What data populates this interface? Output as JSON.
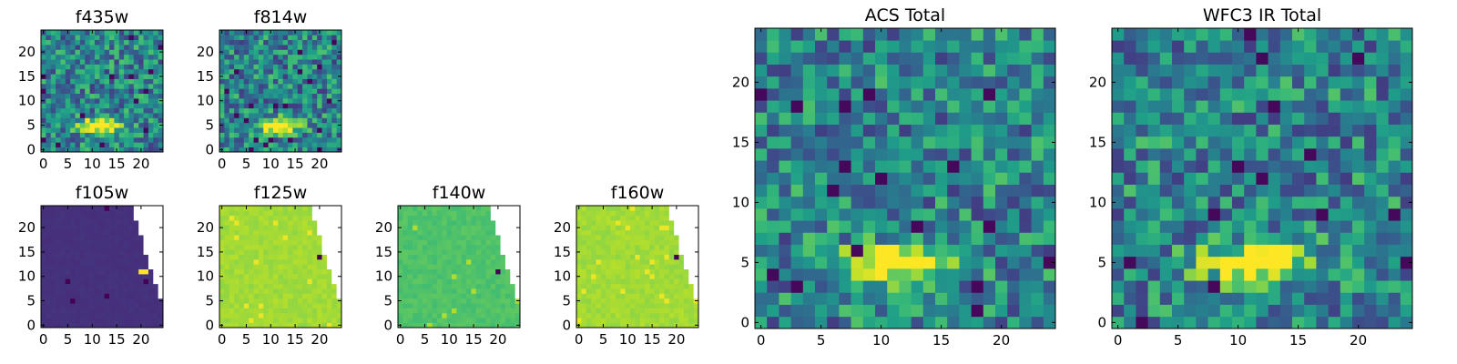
{
  "chart_data": [
    {
      "type": "heatmap",
      "title": "f435w",
      "pattern": "noisy-with-bright-band",
      "xticks": [
        "0",
        "5",
        "10",
        "15",
        "20"
      ],
      "yticks": [
        "0",
        "5",
        "10",
        "15",
        "20"
      ],
      "shape": [
        25,
        25
      ],
      "xlim": [
        -0.5,
        24.5
      ],
      "ylim": [
        -0.5,
        24.5
      ]
    },
    {
      "type": "heatmap",
      "title": "f814w",
      "pattern": "noisy-with-bright-band",
      "xticks": [
        "0",
        "5",
        "10",
        "15",
        "20"
      ],
      "yticks": [
        "0",
        "5",
        "10",
        "15",
        "20"
      ],
      "shape": [
        25,
        25
      ],
      "xlim": [
        -0.5,
        24.5
      ],
      "ylim": [
        -0.5,
        24.5
      ]
    },
    {
      "type": "heatmap",
      "title": "f105w",
      "pattern": "near-uniform-dark-with-masked-corner",
      "xticks": [
        "0",
        "5",
        "10",
        "15",
        "20"
      ],
      "yticks": [
        "0",
        "5",
        "10",
        "15",
        "20"
      ],
      "shape": [
        25,
        25
      ],
      "xlim": [
        -0.5,
        24.5
      ],
      "ylim": [
        -0.5,
        24.5
      ]
    },
    {
      "type": "heatmap",
      "title": "f125w",
      "pattern": "near-uniform-bright-with-masked-corner",
      "xticks": [
        "0",
        "5",
        "10",
        "15",
        "20"
      ],
      "yticks": [
        "0",
        "5",
        "10",
        "15",
        "20"
      ],
      "shape": [
        25,
        25
      ],
      "xlim": [
        -0.5,
        24.5
      ],
      "ylim": [
        -0.5,
        24.5
      ]
    },
    {
      "type": "heatmap",
      "title": "f140w",
      "pattern": "near-uniform-green-with-masked-corner",
      "xticks": [
        "0",
        "5",
        "10",
        "15",
        "20"
      ],
      "yticks": [
        "0",
        "5",
        "10",
        "15",
        "20"
      ],
      "shape": [
        25,
        25
      ],
      "xlim": [
        -0.5,
        24.5
      ],
      "ylim": [
        -0.5,
        24.5
      ]
    },
    {
      "type": "heatmap",
      "title": "f160w",
      "pattern": "near-uniform-bright-with-masked-corner",
      "xticks": [
        "0",
        "5",
        "10",
        "15",
        "20"
      ],
      "yticks": [
        "0",
        "5",
        "10",
        "15",
        "20"
      ],
      "shape": [
        25,
        25
      ],
      "xlim": [
        -0.5,
        24.5
      ],
      "ylim": [
        -0.5,
        24.5
      ]
    },
    {
      "type": "heatmap",
      "title": "ACS Total",
      "pattern": "noisy-with-bright-band",
      "xticks": [
        "0",
        "5",
        "10",
        "15",
        "20"
      ],
      "yticks": [
        "0",
        "5",
        "10",
        "15",
        "20"
      ],
      "shape": [
        25,
        25
      ],
      "xlim": [
        -0.5,
        24.5
      ],
      "ylim": [
        -0.5,
        24.5
      ]
    },
    {
      "type": "heatmap",
      "title": "WFC3 IR Total",
      "pattern": "noisy-with-bright-band",
      "xticks": [
        "0",
        "5",
        "10",
        "15",
        "20"
      ],
      "yticks": [
        "0",
        "5",
        "10",
        "15",
        "20"
      ],
      "shape": [
        25,
        25
      ],
      "xlim": [
        -0.5,
        24.5
      ],
      "ylim": [
        -0.5,
        24.5
      ]
    }
  ],
  "colormap": "viridis",
  "colors": {
    "low": "#440154",
    "mid": "#21918c",
    "high": "#fde725",
    "masked": "#ffffff"
  }
}
